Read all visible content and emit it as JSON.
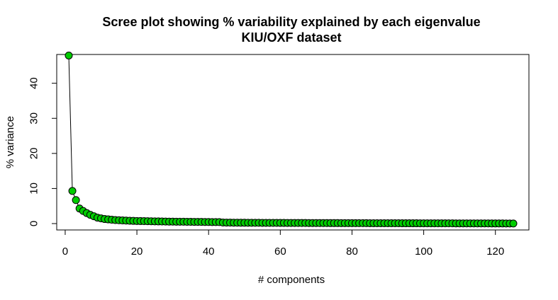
{
  "chart_data": {
    "type": "scatter",
    "title": "Scree plot showing % variability explained by each eigenvalue",
    "subtitle": "KIU/OXF dataset",
    "xlabel": "# components",
    "ylabel": "% variance",
    "xlim": [
      1,
      125
    ],
    "ylim": [
      0,
      48
    ],
    "x_ticks": [
      0,
      20,
      40,
      60,
      80,
      100,
      120
    ],
    "y_ticks": [
      0,
      10,
      20,
      30,
      40
    ],
    "grid": false,
    "legend": "none",
    "point_color": "#00cc00",
    "point_border": "#000000",
    "line_color": "#000000",
    "series": [
      {
        "values": [
          47.9,
          9.3,
          6.7,
          4.3,
          3.6,
          3.0,
          2.5,
          2.1,
          1.7,
          1.5,
          1.3,
          1.2,
          1.1,
          1.0,
          0.95,
          0.9,
          0.85,
          0.8,
          0.77,
          0.74,
          0.72,
          0.7,
          0.68,
          0.66,
          0.64,
          0.62,
          0.6,
          0.58,
          0.56,
          0.55,
          0.54,
          0.53,
          0.52,
          0.51,
          0.5,
          0.49,
          0.48,
          0.47,
          0.46,
          0.45,
          0.44,
          0.43,
          0.42,
          0.3,
          0.28,
          0.27,
          0.26,
          0.25,
          0.24,
          0.24,
          0.23,
          0.23,
          0.22,
          0.22,
          0.21,
          0.21,
          0.2,
          0.2,
          0.2,
          0.19,
          0.19,
          0.18,
          0.18,
          0.18,
          0.17,
          0.17,
          0.17,
          0.16,
          0.16,
          0.16,
          0.15,
          0.15,
          0.15,
          0.14,
          0.14,
          0.14,
          0.13,
          0.13,
          0.13,
          0.13,
          0.12,
          0.12,
          0.12,
          0.12,
          0.11,
          0.11,
          0.11,
          0.11,
          0.1,
          0.1,
          0.1,
          0.1,
          0.1,
          0.09,
          0.09,
          0.09,
          0.09,
          0.09,
          0.08,
          0.08,
          0.08,
          0.08,
          0.08,
          0.07,
          0.07,
          0.07,
          0.07,
          0.07,
          0.06,
          0.06,
          0.06,
          0.06,
          0.06,
          0.05,
          0.05,
          0.05,
          0.05,
          0.05,
          0.04,
          0.04,
          0.04,
          0.04,
          0.03,
          0.03,
          0.02
        ]
      }
    ]
  }
}
